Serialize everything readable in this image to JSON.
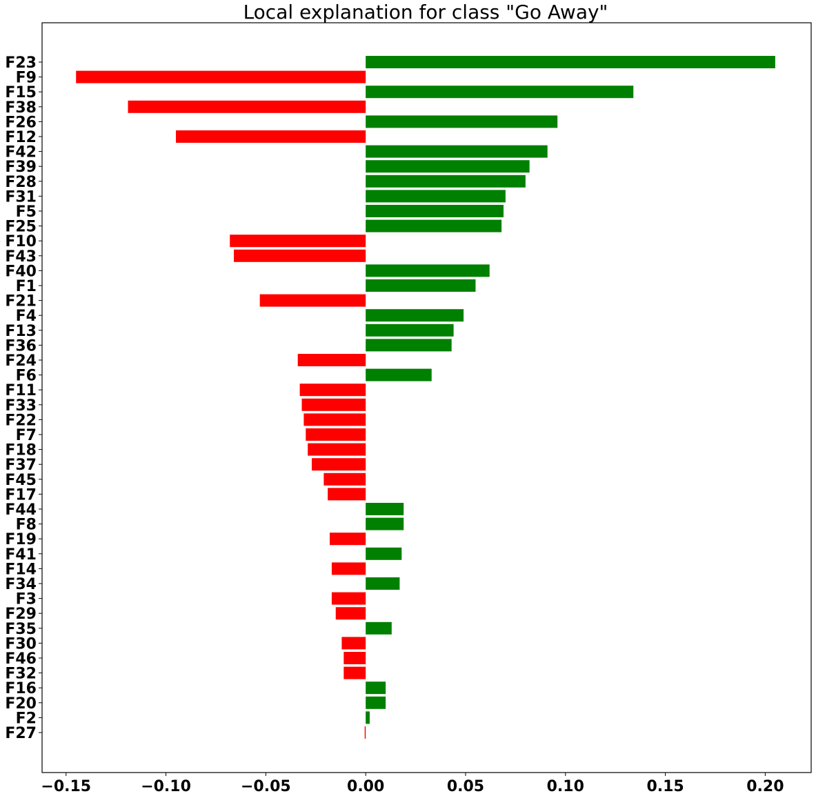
{
  "chart_data": {
    "type": "bar",
    "orientation": "horizontal",
    "title": "Local explanation for class \"Go Away\"",
    "xlabel": "",
    "ylabel": "",
    "xlim": [
      -0.162,
      0.223
    ],
    "xticks": [
      -0.15,
      -0.1,
      -0.05,
      0.0,
      0.05,
      0.1,
      0.15,
      0.2
    ],
    "xtick_labels": [
      "−0.15",
      "−0.10",
      "−0.05",
      "0.00",
      "0.05",
      "0.10",
      "0.15",
      "0.20"
    ],
    "grid": false,
    "legend": false,
    "colors": {
      "positive": "#008000",
      "negative": "#ff0000"
    },
    "categories": [
      "F23",
      "F9",
      "F15",
      "F38",
      "F26",
      "F12",
      "F42",
      "F39",
      "F28",
      "F31",
      "F5",
      "F25",
      "F10",
      "F43",
      "F40",
      "F1",
      "F21",
      "F4",
      "F13",
      "F36",
      "F24",
      "F6",
      "F11",
      "F33",
      "F22",
      "F7",
      "F18",
      "F37",
      "F45",
      "F17",
      "F44",
      "F8",
      "F19",
      "F41",
      "F14",
      "F34",
      "F3",
      "F29",
      "F35",
      "F30",
      "F46",
      "F32",
      "F16",
      "F20",
      "F2",
      "F27"
    ],
    "values": [
      0.205,
      -0.145,
      0.134,
      -0.119,
      0.096,
      -0.095,
      0.091,
      0.082,
      0.08,
      0.07,
      0.069,
      0.068,
      -0.068,
      -0.066,
      0.062,
      0.055,
      -0.053,
      0.049,
      0.044,
      0.043,
      -0.034,
      0.033,
      -0.033,
      -0.032,
      -0.031,
      -0.03,
      -0.029,
      -0.027,
      -0.021,
      -0.019,
      0.019,
      0.019,
      -0.018,
      0.018,
      -0.017,
      0.017,
      -0.017,
      -0.015,
      0.013,
      -0.012,
      -0.011,
      -0.011,
      0.01,
      0.01,
      0.002,
      -0.0005
    ]
  }
}
